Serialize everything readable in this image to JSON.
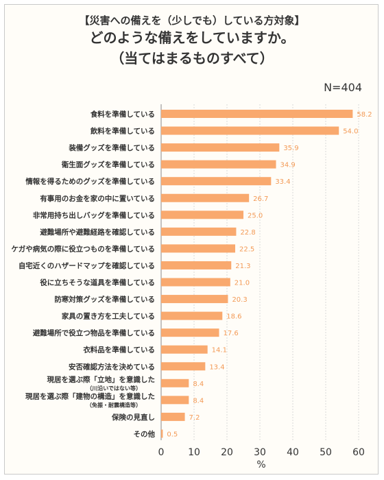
{
  "header": {
    "subtitle": "【災害への備えを（少しでも）している方対象】",
    "title_line1": "どのような備えをしていますか。",
    "title_line2": "（当てはまるものすべて）",
    "n_label": "N=404"
  },
  "colors": {
    "bar": "#f9a96e",
    "value_text": "#f39a56",
    "grid": "#d9d9d9",
    "axis": "#333333"
  },
  "chart_data": {
    "type": "bar",
    "orientation": "horizontal",
    "categories": [
      {
        "label": "食料を準備している"
      },
      {
        "label": "飲料を準備している"
      },
      {
        "label": "装備グッズを準備している"
      },
      {
        "label": "衛生面グッズを準備している"
      },
      {
        "label": "情報を得るためのグッズを準備している"
      },
      {
        "label": "有事用のお金を家の中に置いている"
      },
      {
        "label": "非常用持ち出しバッグを準備している"
      },
      {
        "label": "避難場所や避難経路を確認している"
      },
      {
        "label": "ケガや病気の際に役立つものを準備している"
      },
      {
        "label": "自宅近くのハザードマップを確認している"
      },
      {
        "label": "役に立ちそうな道具を準備している"
      },
      {
        "label": "防寒対策グッズを準備している"
      },
      {
        "label": "家具の置き方を工夫している"
      },
      {
        "label": "避難場所で役立つ物品を準備している"
      },
      {
        "label": "衣料品を準備している"
      },
      {
        "label": "安否確認方法を決めている"
      },
      {
        "label": "現居を選ぶ際「立地」を意識した",
        "note": "（川沿いではない等）"
      },
      {
        "label": "現居を選ぶ際「建物の構造」を意識した",
        "note": "（免振・耐震構造等）"
      },
      {
        "label": "保険の見直し"
      },
      {
        "label": "その他"
      }
    ],
    "values": [
      58.2,
      54.0,
      35.9,
      34.9,
      33.4,
      26.7,
      25.0,
      22.8,
      22.5,
      21.3,
      21.0,
      20.3,
      18.6,
      17.6,
      14.1,
      13.4,
      8.4,
      8.4,
      7.2,
      0.5
    ],
    "value_labels": [
      "58.2",
      "54.0",
      "35.9",
      "34.9",
      "33.4",
      "26.7",
      "25.0",
      "22.8",
      "22.5",
      "21.3",
      "21.0",
      "20.3",
      "18.6",
      "17.6",
      "14.1",
      "13.4",
      "8.4",
      "8.4",
      "7.2",
      "0.5"
    ],
    "x_ticks": [
      "0",
      "10",
      "20",
      "30",
      "40",
      "50",
      "60"
    ],
    "xlim": [
      0,
      60
    ],
    "xlabel": "%",
    "grid": "vertical-dashed"
  }
}
